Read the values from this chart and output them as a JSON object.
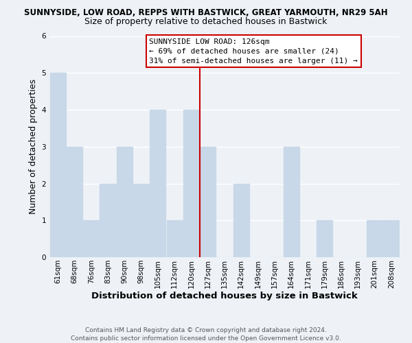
{
  "title": "SUNNYSIDE, LOW ROAD, REPPS WITH BASTWICK, GREAT YARMOUTH, NR29 5AH",
  "subtitle": "Size of property relative to detached houses in Bastwick",
  "xlabel": "Distribution of detached houses by size in Bastwick",
  "ylabel": "Number of detached properties",
  "bar_labels": [
    "61sqm",
    "68sqm",
    "76sqm",
    "83sqm",
    "90sqm",
    "98sqm",
    "105sqm",
    "112sqm",
    "120sqm",
    "127sqm",
    "135sqm",
    "142sqm",
    "149sqm",
    "157sqm",
    "164sqm",
    "171sqm",
    "179sqm",
    "186sqm",
    "193sqm",
    "201sqm",
    "208sqm"
  ],
  "bar_values": [
    5,
    3,
    1,
    2,
    3,
    2,
    4,
    1,
    4,
    3,
    0,
    2,
    0,
    0,
    3,
    0,
    1,
    0,
    0,
    1,
    1
  ],
  "bar_color": "#c8d8e8",
  "vline_index": 9,
  "vline_color": "#cc0000",
  "annotation_title": "SUNNYSIDE LOW ROAD: 126sqm",
  "annotation_line2": "← 69% of detached houses are smaller (24)",
  "annotation_line3": "31% of semi-detached houses are larger (11) →",
  "annotation_box_facecolor": "#ffffff",
  "annotation_box_edgecolor": "#cc0000",
  "ylim": [
    0,
    6
  ],
  "yticks": [
    0,
    1,
    2,
    3,
    4,
    5,
    6
  ],
  "footer_line1": "Contains HM Land Registry data © Crown copyright and database right 2024.",
  "footer_line2": "Contains public sector information licensed under the Open Government Licence v3.0.",
  "fig_facecolor": "#eef2f7",
  "ax_facecolor": "#eef2f7",
  "grid_color": "#ffffff",
  "title_fontsize": 8.5,
  "subtitle_fontsize": 9.0,
  "xlabel_fontsize": 9.5,
  "ylabel_fontsize": 9.0,
  "tick_fontsize": 7.5,
  "ann_fontsize": 8.0,
  "footer_fontsize": 6.5
}
